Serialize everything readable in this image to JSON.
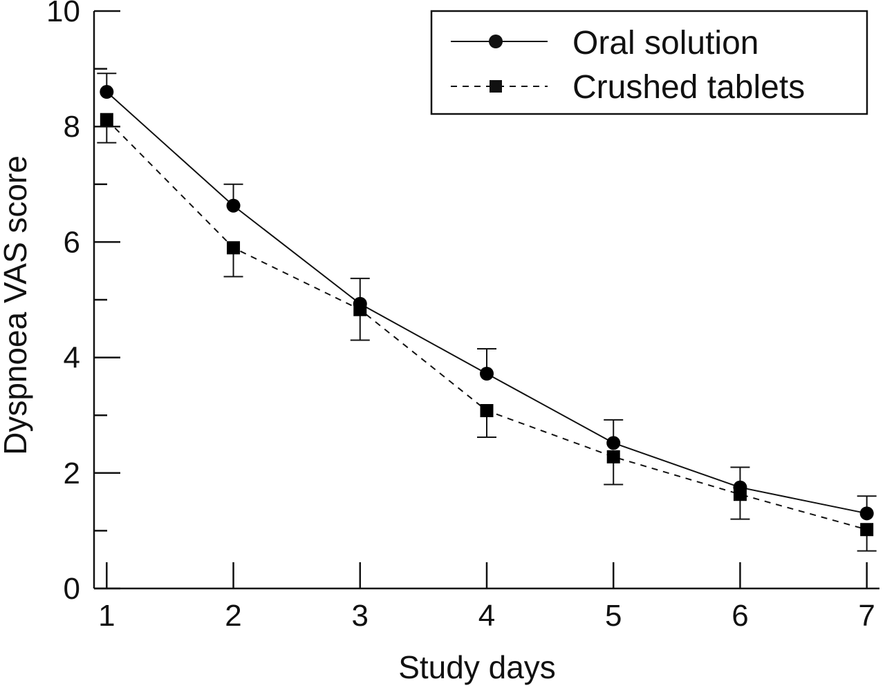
{
  "chart_data": {
    "type": "line",
    "title": "",
    "xlabel": "Study days",
    "ylabel": "Dyspnoea VAS score",
    "x": [
      1,
      2,
      3,
      4,
      5,
      6,
      7
    ],
    "xlim": [
      0.9,
      7.1
    ],
    "ylim": [
      0,
      10
    ],
    "x_ticks": [
      1,
      2,
      3,
      4,
      5,
      6,
      7
    ],
    "y_ticks": [
      0,
      2,
      4,
      6,
      8,
      10
    ],
    "y_minor_ticks": [
      1,
      3,
      5,
      7,
      9
    ],
    "grid": false,
    "legend_position": "top-right",
    "series": [
      {
        "name": "Oral solution",
        "marker": "circle",
        "line_style": "solid",
        "color": "#000000",
        "values": [
          8.6,
          6.63,
          4.93,
          3.72,
          2.52,
          1.75,
          1.3
        ],
        "error_upper": [
          8.92,
          7.0,
          5.37,
          4.15,
          2.92,
          2.1,
          1.6
        ]
      },
      {
        "name": "Crushed tablets",
        "marker": "square",
        "line_style": "dashed",
        "color": "#000000",
        "values": [
          8.12,
          5.9,
          4.83,
          3.08,
          2.28,
          1.63,
          1.02
        ],
        "error_lower": [
          7.72,
          5.4,
          4.3,
          2.62,
          1.8,
          1.2,
          0.65
        ]
      }
    ]
  }
}
